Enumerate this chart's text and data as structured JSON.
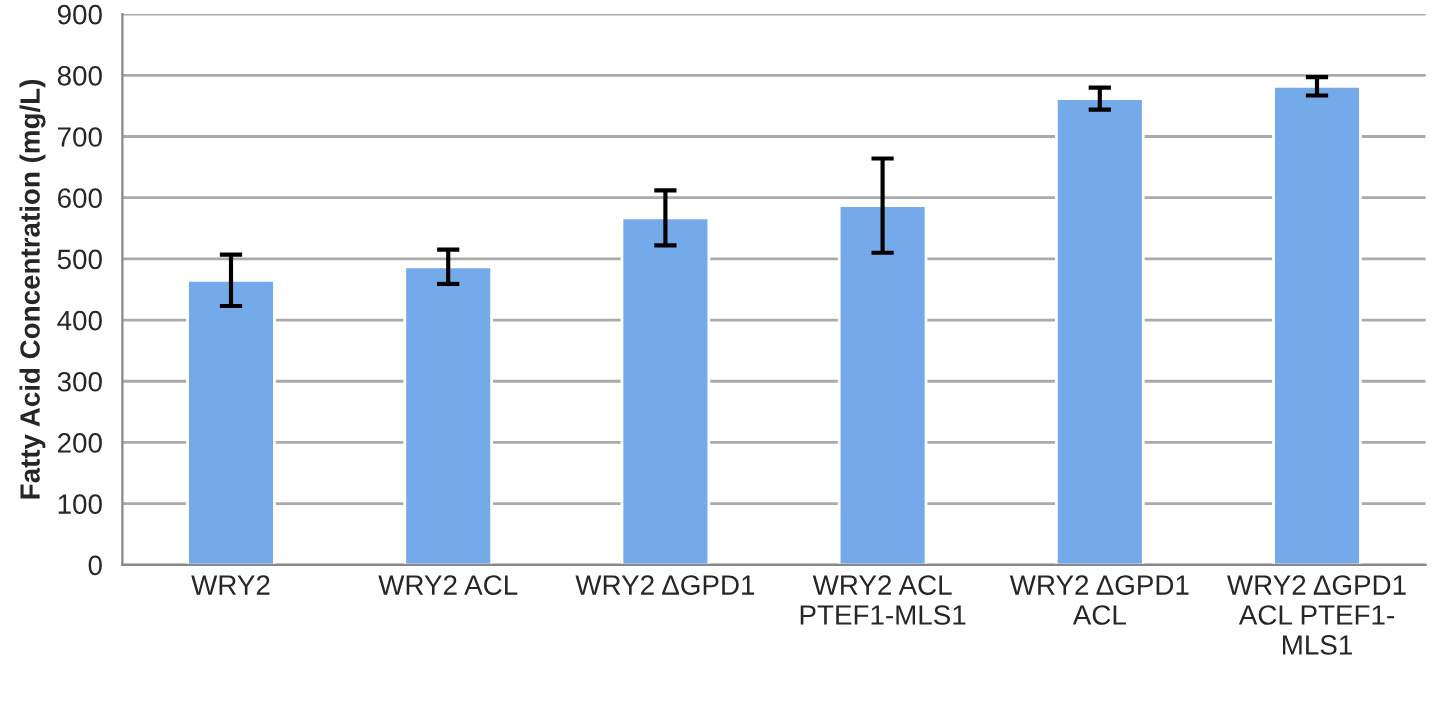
{
  "chart_data": {
    "type": "bar",
    "ylabel": "Fatty Acid Concentration (mg/L)",
    "categories": [
      "WRY2",
      "WRY2 ACL",
      "WRY2 ΔGPD1",
      "WRY2 ACL\nPTEF1-MLS1",
      "WRY2 ΔGPD1\nACL",
      "WRY2 ΔGPD1\nACL PTEF1-\nMLS1"
    ],
    "values": [
      465,
      487,
      567,
      587,
      762,
      782
    ],
    "errors": [
      42,
      28,
      45,
      77,
      18,
      15
    ],
    "color": "#74aaea",
    "ylim": [
      0,
      900
    ],
    "yticks": [
      0,
      100,
      200,
      300,
      400,
      500,
      600,
      700,
      800,
      900
    ],
    "grid": "y",
    "legend": false
  }
}
